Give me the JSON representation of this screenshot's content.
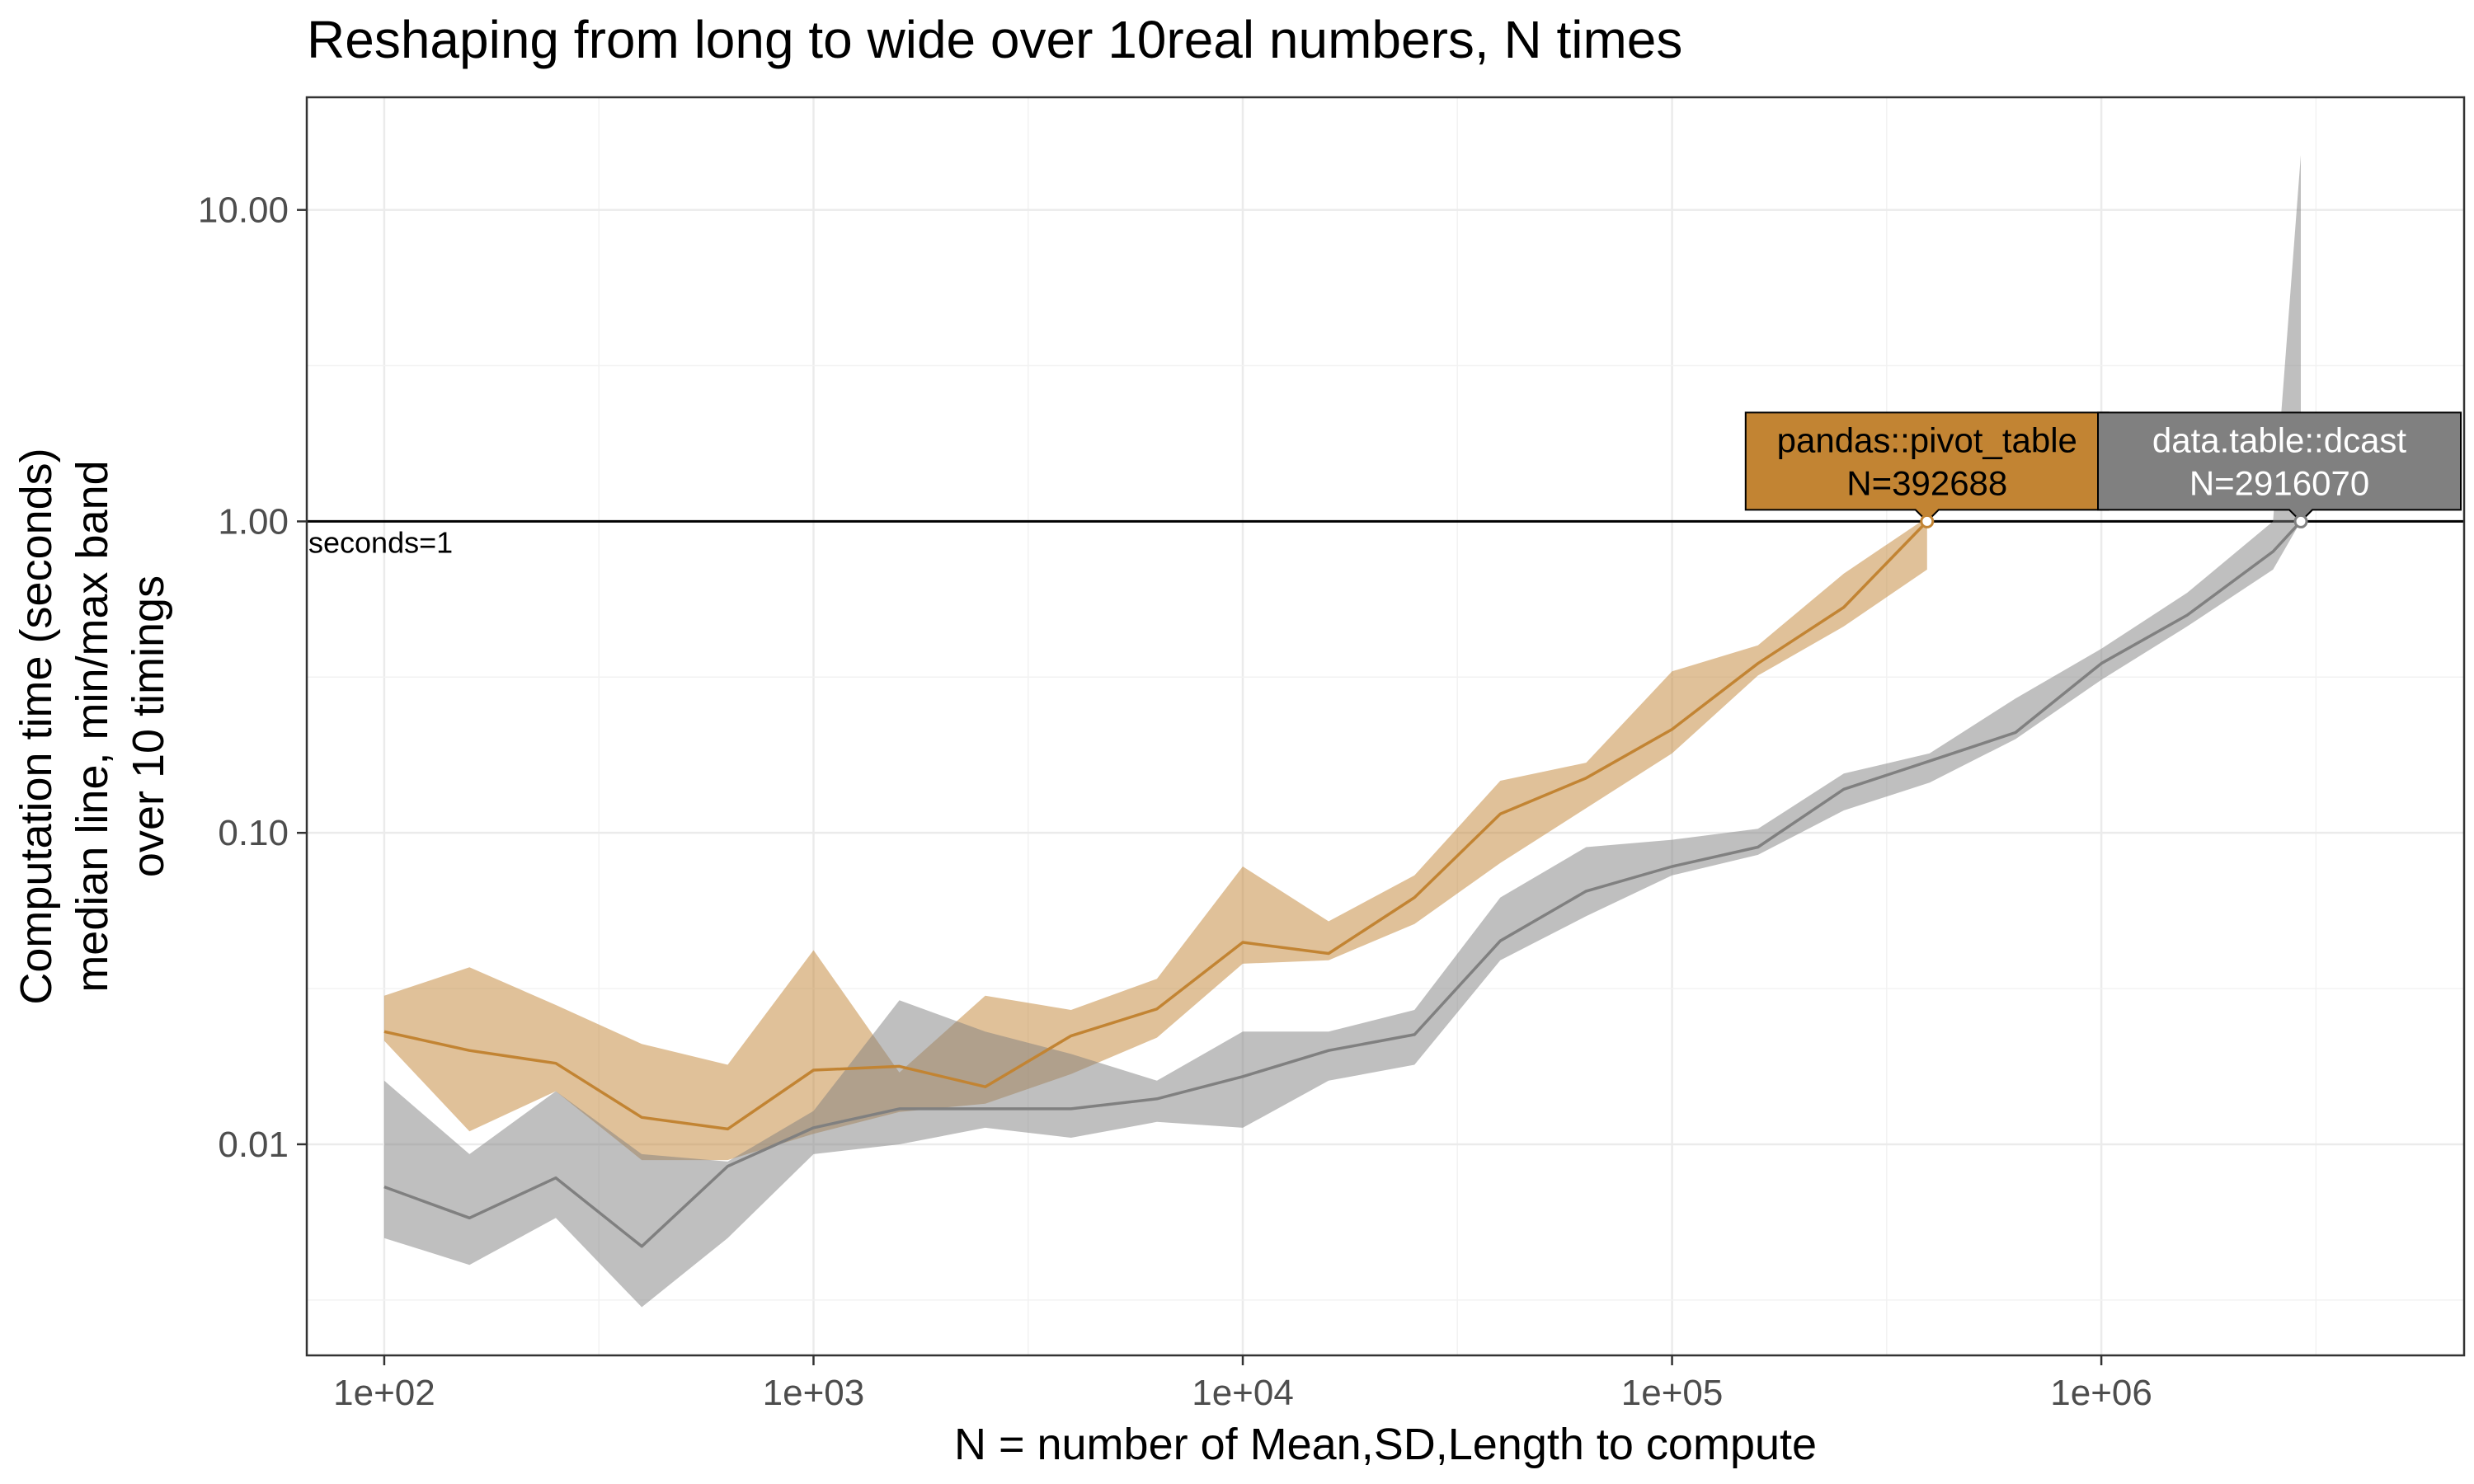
{
  "chart_data": {
    "type": "line",
    "title": "Reshaping from long to wide over 10real numbers, N times",
    "xlabel": "N = number of Mean,SD,Length to compute",
    "ylabel_lines": [
      "Computation time (seconds)",
      "median line, min/max band",
      "over 10 timings"
    ],
    "x_scale": "log10",
    "y_scale": "log10",
    "xlim": [
      66,
      7000000
    ],
    "ylim": [
      0.0021,
      23
    ],
    "x_ticks": [
      {
        "value": 100,
        "label": "1e+02"
      },
      {
        "value": 1000,
        "label": "1e+03"
      },
      {
        "value": 10000,
        "label": "1e+04"
      },
      {
        "value": 100000,
        "label": "1e+05"
      },
      {
        "value": 1000000,
        "label": "1e+06"
      }
    ],
    "y_ticks": [
      {
        "value": 0.01,
        "label": "0.01"
      },
      {
        "value": 0.1,
        "label": "0.10"
      },
      {
        "value": 1,
        "label": "1.00"
      },
      {
        "value": 10,
        "label": "10.00"
      }
    ],
    "grid": true,
    "reference_line": {
      "y": 1,
      "label": "seconds=1"
    },
    "series": [
      {
        "color": "#c28433",
        "x": [
          100,
          158,
          251,
          398,
          631,
          1000,
          1585,
          2512,
          3981,
          6310,
          10000,
          15849,
          25119,
          39811,
          63096,
          100000,
          158489,
          251189,
          392688
        ],
        "median": [
          0.023,
          0.02,
          0.0182,
          0.0122,
          0.0112,
          0.0173,
          0.0178,
          0.0153,
          0.0223,
          0.0272,
          0.0445,
          0.041,
          0.062,
          0.115,
          0.15,
          0.215,
          0.35,
          0.53,
          1.0
        ],
        "min": [
          0.0215,
          0.011,
          0.0148,
          0.0089,
          0.0089,
          0.0108,
          0.0127,
          0.0135,
          0.0168,
          0.022,
          0.038,
          0.039,
          0.051,
          0.08,
          0.12,
          0.18,
          0.32,
          0.46,
          0.7
        ],
        "max": [
          0.03,
          0.037,
          0.028,
          0.021,
          0.018,
          0.042,
          0.017,
          0.03,
          0.027,
          0.034,
          0.078,
          0.052,
          0.073,
          0.147,
          0.168,
          0.33,
          0.4,
          0.68,
          1.03
        ],
        "callout": {
          "lines": [
            "pandas::pivot_table",
            "N=392688"
          ],
          "text_color": "#000000"
        }
      },
      {
        "color": "#808080",
        "x": [
          100,
          158,
          251,
          398,
          631,
          1000,
          1585,
          2512,
          3981,
          6310,
          10000,
          15849,
          25119,
          39811,
          63096,
          100000,
          158489,
          251189,
          398107,
          630957,
          1000000,
          1584893,
          2512000,
          2916070
        ],
        "median": [
          0.0073,
          0.0058,
          0.0078,
          0.0047,
          0.0085,
          0.0113,
          0.013,
          0.013,
          0.013,
          0.014,
          0.0165,
          0.02,
          0.0225,
          0.045,
          0.065,
          0.078,
          0.09,
          0.138,
          0.17,
          0.21,
          0.35,
          0.5,
          0.8,
          1.0
        ],
        "min": [
          0.005,
          0.0041,
          0.0058,
          0.003,
          0.005,
          0.0093,
          0.01,
          0.0113,
          0.0105,
          0.0118,
          0.0113,
          0.016,
          0.018,
          0.039,
          0.054,
          0.073,
          0.085,
          0.118,
          0.145,
          0.2,
          0.31,
          0.46,
          0.7,
          1.0
        ],
        "max": [
          0.016,
          0.0093,
          0.0148,
          0.0093,
          0.0088,
          0.0128,
          0.029,
          0.023,
          0.0195,
          0.016,
          0.023,
          0.023,
          0.027,
          0.062,
          0.09,
          0.095,
          0.103,
          0.155,
          0.18,
          0.27,
          0.39,
          0.59,
          1.0,
          15.0
        ],
        "callout": {
          "lines": [
            "data.table::dcast",
            "N=2916070"
          ],
          "text_color": "#ffffff"
        }
      }
    ]
  }
}
